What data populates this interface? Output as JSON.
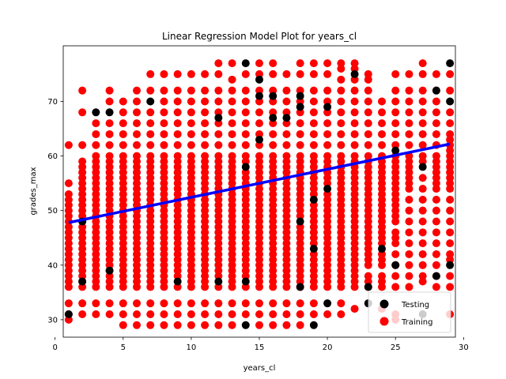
{
  "chart_data": {
    "type": "scatter",
    "title": "Linear Regression Model Plot for years_cl",
    "xlabel": "years_cl",
    "ylabel": "grades_max",
    "xlim": [
      0.6,
      29.4
    ],
    "ylim": [
      26.8,
      80.2
    ],
    "xticks": [
      0,
      5,
      10,
      15,
      20,
      25,
      30
    ],
    "yticks": [
      30,
      40,
      50,
      60,
      70
    ],
    "grid": false,
    "legend_position": "lower-right",
    "colors": {
      "testing": "#000000",
      "training": "#ff0000",
      "regression": "#0000ff"
    },
    "legend": [
      {
        "name": "Testing",
        "color": "#000000"
      },
      {
        "name": "Training",
        "color": "#ff0000"
      }
    ],
    "regression_line": {
      "x": [
        1,
        29
      ],
      "y": [
        47.8,
        62.2
      ]
    },
    "training_columns": [
      {
        "x": 1,
        "y": [
          30,
          31,
          33,
          36,
          37,
          38,
          39,
          40,
          41,
          42,
          43,
          44,
          45,
          46,
          47,
          48,
          49,
          50,
          51,
          52,
          53,
          55,
          62
        ]
      },
      {
        "x": 2,
        "y": [
          31,
          33,
          36,
          37,
          38,
          39,
          40,
          41,
          42,
          43,
          44,
          45,
          46,
          47,
          48,
          49,
          50,
          51,
          52,
          53,
          54,
          55,
          56,
          57,
          58,
          59,
          62,
          68,
          72
        ]
      },
      {
        "x": 3,
        "y": [
          31,
          33,
          36,
          37,
          38,
          39,
          40,
          41,
          42,
          43,
          44,
          45,
          46,
          47,
          48,
          49,
          50,
          51,
          52,
          53,
          54,
          55,
          56,
          57,
          58,
          59,
          60,
          62,
          64,
          66
        ]
      },
      {
        "x": 4,
        "y": [
          31,
          33,
          36,
          37,
          38,
          39,
          40,
          41,
          42,
          43,
          44,
          45,
          46,
          47,
          48,
          49,
          50,
          51,
          52,
          53,
          54,
          55,
          56,
          57,
          58,
          59,
          60,
          62,
          64,
          66,
          70,
          72
        ]
      },
      {
        "x": 5,
        "y": [
          29,
          31,
          33,
          36,
          37,
          38,
          39,
          40,
          41,
          42,
          43,
          44,
          45,
          46,
          47,
          48,
          49,
          50,
          51,
          52,
          53,
          54,
          55,
          56,
          57,
          58,
          59,
          60,
          62,
          64,
          66,
          68,
          70
        ]
      },
      {
        "x": 6,
        "y": [
          29,
          31,
          33,
          36,
          37,
          38,
          39,
          40,
          41,
          42,
          43,
          44,
          45,
          46,
          47,
          48,
          49,
          50,
          51,
          52,
          53,
          54,
          55,
          56,
          57,
          58,
          59,
          60,
          62,
          64,
          66,
          68,
          70,
          72
        ]
      },
      {
        "x": 7,
        "y": [
          29,
          31,
          33,
          36,
          37,
          38,
          39,
          40,
          41,
          42,
          43,
          44,
          45,
          46,
          47,
          48,
          49,
          50,
          51,
          52,
          53,
          54,
          55,
          56,
          57,
          58,
          59,
          60,
          62,
          64,
          66,
          68,
          72,
          75
        ]
      },
      {
        "x": 8,
        "y": [
          29,
          31,
          33,
          36,
          37,
          38,
          39,
          40,
          41,
          42,
          43,
          44,
          45,
          46,
          47,
          48,
          49,
          50,
          51,
          52,
          53,
          54,
          55,
          56,
          57,
          58,
          59,
          60,
          62,
          64,
          66,
          68,
          70,
          72,
          75
        ]
      },
      {
        "x": 9,
        "y": [
          29,
          31,
          33,
          36,
          38,
          39,
          40,
          41,
          42,
          43,
          44,
          45,
          46,
          47,
          48,
          49,
          50,
          51,
          52,
          53,
          54,
          55,
          56,
          57,
          58,
          59,
          60,
          62,
          64,
          66,
          68,
          70,
          72,
          75
        ]
      },
      {
        "x": 10,
        "y": [
          29,
          31,
          33,
          36,
          37,
          38,
          39,
          40,
          41,
          42,
          43,
          44,
          45,
          46,
          47,
          48,
          49,
          50,
          51,
          52,
          53,
          54,
          55,
          56,
          57,
          58,
          59,
          60,
          62,
          64,
          66,
          68,
          70,
          72,
          75
        ]
      },
      {
        "x": 11,
        "y": [
          29,
          31,
          33,
          36,
          37,
          38,
          39,
          40,
          41,
          42,
          43,
          44,
          45,
          46,
          47,
          48,
          49,
          50,
          51,
          52,
          53,
          54,
          55,
          56,
          57,
          58,
          59,
          60,
          62,
          64,
          66,
          68,
          70,
          72,
          75
        ]
      },
      {
        "x": 12,
        "y": [
          29,
          31,
          33,
          36,
          38,
          39,
          40,
          41,
          42,
          43,
          44,
          45,
          46,
          47,
          48,
          49,
          50,
          51,
          52,
          53,
          54,
          55,
          56,
          57,
          58,
          59,
          60,
          62,
          64,
          66,
          68,
          70,
          72,
          75,
          77
        ]
      },
      {
        "x": 13,
        "y": [
          29,
          31,
          33,
          36,
          37,
          38,
          39,
          40,
          41,
          42,
          43,
          44,
          45,
          46,
          47,
          48,
          49,
          50,
          51,
          52,
          53,
          54,
          55,
          56,
          57,
          58,
          59,
          60,
          62,
          64,
          66,
          68,
          70,
          72,
          74,
          77
        ]
      },
      {
        "x": 14,
        "y": [
          31,
          33,
          36,
          38,
          39,
          40,
          41,
          42,
          43,
          44,
          45,
          46,
          47,
          48,
          49,
          50,
          51,
          52,
          53,
          54,
          55,
          56,
          57,
          59,
          60,
          62,
          64,
          66,
          68,
          70,
          72,
          75
        ]
      },
      {
        "x": 15,
        "y": [
          29,
          31,
          33,
          36,
          37,
          38,
          39,
          40,
          41,
          42,
          43,
          44,
          45,
          46,
          47,
          48,
          49,
          50,
          51,
          52,
          53,
          54,
          55,
          56,
          57,
          58,
          59,
          60,
          62,
          64,
          66,
          68,
          70,
          72,
          75,
          77
        ]
      },
      {
        "x": 16,
        "y": [
          29,
          31,
          33,
          36,
          37,
          38,
          39,
          40,
          41,
          42,
          43,
          44,
          45,
          46,
          47,
          48,
          49,
          50,
          51,
          52,
          53,
          54,
          55,
          56,
          57,
          58,
          59,
          60,
          62,
          64,
          66,
          68,
          70,
          72,
          75,
          77
        ]
      },
      {
        "x": 17,
        "y": [
          29,
          31,
          33,
          36,
          37,
          38,
          39,
          40,
          41,
          42,
          43,
          44,
          45,
          46,
          47,
          48,
          49,
          50,
          51,
          52,
          53,
          54,
          55,
          56,
          57,
          58,
          59,
          60,
          62,
          64,
          66,
          68,
          70,
          72,
          75
        ]
      },
      {
        "x": 18,
        "y": [
          29,
          31,
          33,
          36,
          37,
          38,
          39,
          40,
          41,
          42,
          43,
          44,
          45,
          46,
          47,
          49,
          50,
          51,
          52,
          53,
          54,
          55,
          56,
          57,
          58,
          59,
          60,
          62,
          64,
          66,
          68,
          70,
          72,
          75,
          77
        ]
      },
      {
        "x": 19,
        "y": [
          31,
          33,
          36,
          37,
          38,
          39,
          40,
          41,
          42,
          44,
          45,
          46,
          47,
          48,
          49,
          50,
          51,
          53,
          54,
          55,
          56,
          57,
          58,
          59,
          60,
          62,
          64,
          66,
          68,
          70,
          72,
          75,
          77
        ]
      },
      {
        "x": 20,
        "y": [
          31,
          36,
          37,
          38,
          39,
          40,
          41,
          42,
          43,
          44,
          45,
          46,
          47,
          48,
          49,
          50,
          51,
          52,
          53,
          55,
          56,
          57,
          58,
          59,
          60,
          62,
          64,
          66,
          68,
          70,
          72,
          75,
          77
        ]
      },
      {
        "x": 21,
        "y": [
          31,
          33,
          36,
          37,
          38,
          39,
          40,
          41,
          42,
          43,
          44,
          45,
          46,
          47,
          48,
          49,
          50,
          51,
          52,
          53,
          54,
          55,
          56,
          57,
          58,
          59,
          60,
          62,
          64,
          66,
          68,
          70,
          72,
          74,
          76,
          77
        ]
      },
      {
        "x": 22,
        "y": [
          32,
          36,
          37,
          38,
          39,
          40,
          41,
          42,
          43,
          44,
          45,
          46,
          47,
          48,
          49,
          50,
          51,
          52,
          53,
          54,
          55,
          56,
          57,
          58,
          59,
          60,
          62,
          64,
          66,
          68,
          70,
          72,
          74,
          76,
          77
        ]
      },
      {
        "x": 23,
        "y": [
          36,
          37,
          38,
          40,
          41,
          42,
          43,
          44,
          45,
          46,
          47,
          48,
          49,
          50,
          51,
          52,
          53,
          54,
          55,
          56,
          57,
          58,
          59,
          60,
          62,
          64,
          66,
          68,
          70,
          72,
          74,
          75
        ]
      },
      {
        "x": 24,
        "y": [
          32,
          36,
          37,
          38,
          40,
          41,
          42,
          44,
          45,
          46,
          47,
          48,
          49,
          50,
          51,
          52,
          53,
          54,
          55,
          56,
          57,
          58,
          59,
          60,
          62,
          64,
          66,
          68,
          70
        ]
      },
      {
        "x": 25,
        "y": [
          30,
          31,
          36,
          38,
          40,
          42,
          44,
          45,
          46,
          48,
          49,
          50,
          51,
          52,
          53,
          54,
          55,
          56,
          57,
          58,
          59,
          60,
          62,
          64,
          66,
          68,
          70,
          72,
          75
        ]
      },
      {
        "x": 26,
        "y": [
          36,
          38,
          40,
          42,
          44,
          46,
          48,
          50,
          52,
          54,
          55,
          56,
          57,
          58,
          59,
          60,
          62,
          64,
          66,
          68,
          70,
          72,
          75
        ]
      },
      {
        "x": 27,
        "y": [
          37,
          38,
          40,
          42,
          44,
          46,
          48,
          50,
          52,
          54,
          56,
          59,
          60,
          62,
          64,
          66,
          68,
          70,
          72,
          75,
          77
        ]
      },
      {
        "x": 28,
        "y": [
          36,
          38,
          40,
          42,
          44,
          46,
          48,
          50,
          52,
          54,
          55,
          56,
          57,
          58,
          59,
          60,
          62,
          64,
          66,
          68,
          70,
          72,
          75
        ]
      },
      {
        "x": 29,
        "y": [
          31,
          36,
          38,
          41,
          42,
          44,
          46,
          48,
          50,
          52,
          54,
          55,
          56,
          57,
          58,
          59,
          60,
          61,
          62,
          63,
          64,
          66,
          68,
          72,
          75
        ]
      }
    ],
    "testing_points": [
      {
        "x": 1,
        "y": 31
      },
      {
        "x": 2,
        "y": 37
      },
      {
        "x": 2,
        "y": 48
      },
      {
        "x": 3,
        "y": 68
      },
      {
        "x": 4,
        "y": 68
      },
      {
        "x": 4,
        "y": 39
      },
      {
        "x": 7,
        "y": 70
      },
      {
        "x": 9,
        "y": 37
      },
      {
        "x": 12,
        "y": 37
      },
      {
        "x": 12,
        "y": 67
      },
      {
        "x": 14,
        "y": 77
      },
      {
        "x": 14,
        "y": 58
      },
      {
        "x": 14,
        "y": 37
      },
      {
        "x": 14,
        "y": 29
      },
      {
        "x": 15,
        "y": 74
      },
      {
        "x": 15,
        "y": 71
      },
      {
        "x": 15,
        "y": 63
      },
      {
        "x": 16,
        "y": 71
      },
      {
        "x": 16,
        "y": 67
      },
      {
        "x": 17,
        "y": 67
      },
      {
        "x": 18,
        "y": 71
      },
      {
        "x": 18,
        "y": 69
      },
      {
        "x": 18,
        "y": 48
      },
      {
        "x": 18,
        "y": 36
      },
      {
        "x": 19,
        "y": 52
      },
      {
        "x": 19,
        "y": 43
      },
      {
        "x": 19,
        "y": 29
      },
      {
        "x": 20,
        "y": 69
      },
      {
        "x": 20,
        "y": 54
      },
      {
        "x": 20,
        "y": 33
      },
      {
        "x": 22,
        "y": 75
      },
      {
        "x": 23,
        "y": 36
      },
      {
        "x": 23,
        "y": 33
      },
      {
        "x": 24,
        "y": 43
      },
      {
        "x": 25,
        "y": 61
      },
      {
        "x": 25,
        "y": 40
      },
      {
        "x": 27,
        "y": 58
      },
      {
        "x": 27,
        "y": 31
      },
      {
        "x": 28,
        "y": 72
      },
      {
        "x": 28,
        "y": 38
      },
      {
        "x": 29,
        "y": 77
      },
      {
        "x": 29,
        "y": 70
      },
      {
        "x": 29,
        "y": 40
      }
    ]
  }
}
